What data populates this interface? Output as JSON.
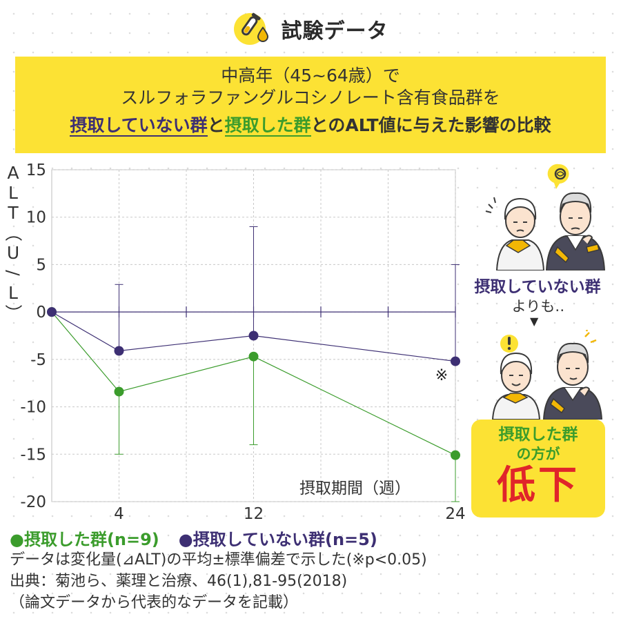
{
  "header": {
    "title": "試験データ",
    "icon": "test-tube-icon"
  },
  "banner": {
    "line1": "中高年（45~64歳）で",
    "line2": "スルフォラファングルコシノレート含有食品群を",
    "line3_a": "摂取していない群",
    "line3_b": "と",
    "line3_c": "摂取した群",
    "line3_d": "とのALT値に与えた影響の比較",
    "bg_color": "#fce234"
  },
  "chart_data": {
    "type": "line",
    "title": "",
    "xlabel": "摂取期間（週）",
    "ylabel": "ALT（U/L）",
    "x_ticks": [
      4,
      12,
      24
    ],
    "y_ticks": [
      15,
      10,
      5,
      0,
      -5,
      -10,
      -15,
      -20
    ],
    "ylim": [
      -20,
      15
    ],
    "grid": true,
    "series": [
      {
        "name": "摂取した群(n=9)",
        "color": "#3b9c2c",
        "points": [
          {
            "x": 0,
            "y": 0
          },
          {
            "x": 4,
            "y": -8.4,
            "err_low": -15.0,
            "err_high": null
          },
          {
            "x": 12,
            "y": -4.7,
            "err_low": -14.0,
            "err_high": null
          },
          {
            "x": 24,
            "y": -15.1,
            "err_low": -20.0,
            "err_high": null
          }
        ]
      },
      {
        "name": "摂取していない群(n=5)",
        "color": "#3d2f73",
        "points": [
          {
            "x": 0,
            "y": 0
          },
          {
            "x": 4,
            "y": -4.1,
            "err_low": null,
            "err_high": 2.9
          },
          {
            "x": 12,
            "y": -2.5,
            "err_low": null,
            "err_high": 9.0
          },
          {
            "x": 24,
            "y": -5.2,
            "err_low": null,
            "err_high": 5.0
          }
        ]
      }
    ],
    "annotations": [
      {
        "text": "※",
        "x": 24
      }
    ]
  },
  "legend": {
    "green": "●摂取した群(n=9)",
    "purple": "●摂取していない群(n=5)"
  },
  "notes": [
    "データは変化量(⊿ALT)の平均±標準偏差で示した(※p<0.05)",
    "出典：菊池ら、薬理と治療、46(1),81-95(2018)",
    "（論文データから代表的なデータを記載）"
  ],
  "side": {
    "label_not": "摂取していない群",
    "label_yori": "よりも‥",
    "arrow": "▼",
    "result_a": "摂取した群",
    "result_b": "の方が",
    "result_c": "低下"
  },
  "colors": {
    "green": "#3b9c2c",
    "purple": "#3d2f73",
    "yellow": "#fce234",
    "red": "#e0252a"
  }
}
